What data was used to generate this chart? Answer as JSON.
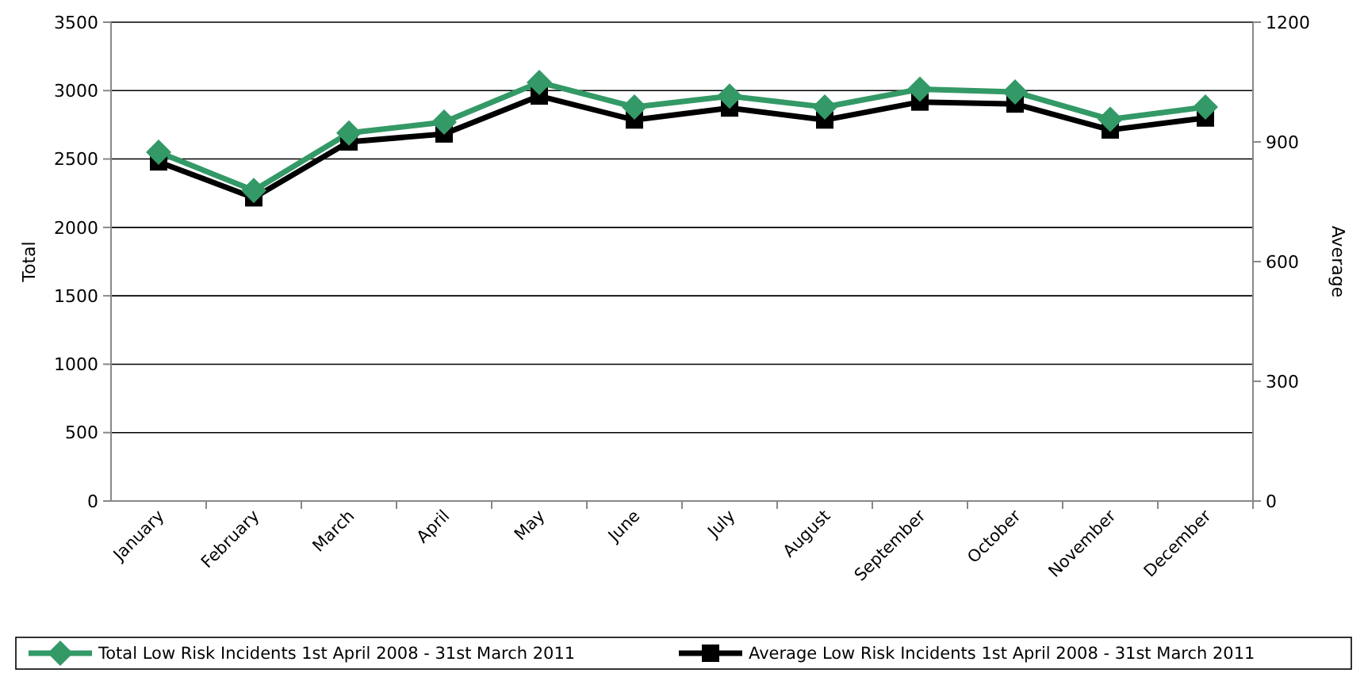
{
  "chart_data": {
    "type": "line",
    "xlabel": null,
    "ylabel": "Total",
    "y2label": "Average",
    "categories": [
      "January",
      "February",
      "March",
      "April",
      "May",
      "June",
      "July",
      "August",
      "September",
      "October",
      "November",
      "December"
    ],
    "series": [
      {
        "name": "Total Low Risk Incidents 1st April 2008 - 31st March 2011",
        "color": "#339966",
        "marker": "diamond",
        "values": [
          2550,
          2270,
          2690,
          2770,
          3060,
          2880,
          2960,
          2880,
          3010,
          2990,
          2790,
          2880
        ]
      },
      {
        "name": "Average Low Risk Incidents 1st April 2008 - 31st March 2011",
        "color": "#000000",
        "marker": "square",
        "axis": "y2",
        "values": [
          850,
          760,
          900,
          920,
          1015,
          955,
          985,
          955,
          1000,
          995,
          930,
          960
        ]
      }
    ],
    "ylim": [
      0,
      3500
    ],
    "yticks": [
      0,
      500,
      1000,
      1500,
      2000,
      2500,
      3000,
      3500
    ],
    "y2lim": [
      0,
      1200
    ],
    "y2ticks": [
      0,
      300,
      600,
      900,
      1200
    ],
    "grid": "y",
    "legend": "bottom",
    "line_style": "solid"
  }
}
